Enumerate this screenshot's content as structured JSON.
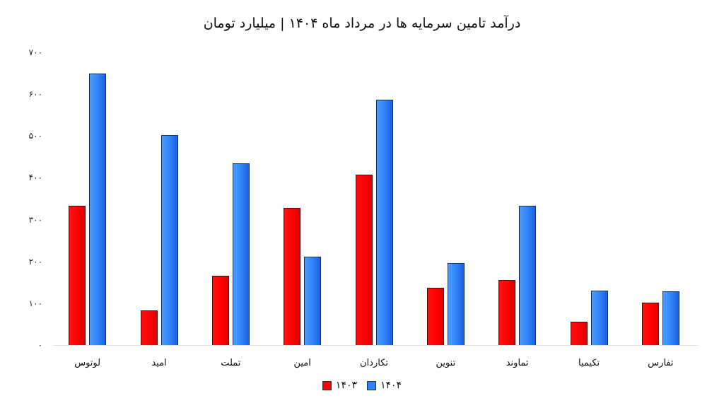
{
  "chart_data": {
    "type": "bar",
    "title": "درآمد تامین سرمایه ها در مرداد ماه ۱۴۰۴ | میلیارد تومان",
    "xlabel": "",
    "ylabel": "",
    "ylim": [
      0,
      700
    ],
    "yticks": [
      0,
      100,
      200,
      300,
      400,
      500,
      600,
      700
    ],
    "ytick_labels": [
      "۰",
      "۱۰۰",
      "۲۰۰",
      "۳۰۰",
      "۴۰۰",
      "۵۰۰",
      "۶۰۰",
      "۷۰۰"
    ],
    "grid": false,
    "legend_position": "bottom",
    "categories": [
      "لوتوس",
      "امید",
      "تملت",
      "امین",
      "تکاردان",
      "تنوین",
      "تماوند",
      "تکیمیا",
      "تفارس"
    ],
    "series": [
      {
        "name": "۱۴۰۳",
        "color": "#ff0000",
        "values": [
          333,
          83,
          166,
          328,
          408,
          137,
          156,
          56,
          101
        ]
      },
      {
        "name": "۱۴۰۴",
        "color": "#2f82f6",
        "values": [
          649,
          502,
          435,
          211,
          587,
          196,
          333,
          130,
          128
        ]
      }
    ]
  }
}
